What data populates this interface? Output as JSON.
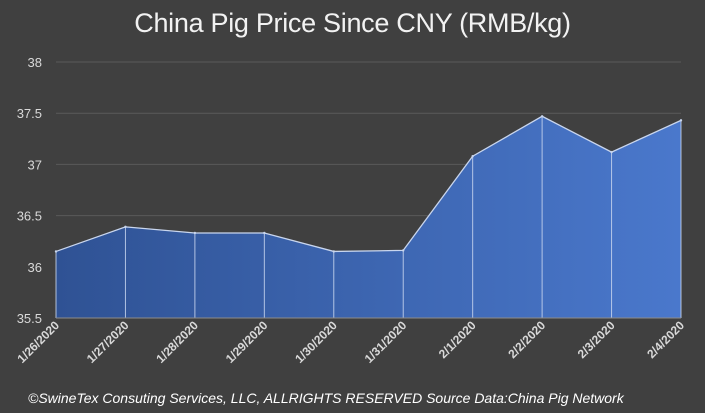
{
  "chart_data": {
    "type": "area",
    "title": "China Pig Price Since CNY (RMB/kg)",
    "xlabel": "",
    "ylabel": "",
    "categories": [
      "1/26/2020",
      "1/27/2020",
      "1/28/2020",
      "1/29/2020",
      "1/30/2020",
      "1/31/2020",
      "2/1/2020",
      "2/2/2020",
      "2/3/2020",
      "2/4/2020"
    ],
    "series": [
      {
        "values": [
          36.15,
          36.39,
          36.33,
          36.33,
          36.15,
          36.16,
          37.08,
          37.47,
          37.12,
          37.43
        ]
      }
    ],
    "ylim": [
      35.5,
      38
    ],
    "yticks": [
      35.5,
      36,
      36.5,
      37,
      37.5,
      38
    ],
    "ytick_labels": [
      "35.5",
      "36",
      "36.5",
      "37",
      "37.5",
      "38"
    ],
    "grid": true,
    "colors": {
      "background": "#404040",
      "fill_start": "#2f5294",
      "fill_end": "#4a78cc",
      "line": "#c9d6ee",
      "grid": "#5a5a5a",
      "text": "#d9d9d9"
    }
  },
  "footer": "©SwineTex Consuting Services, LLC, ALLRIGHTS RESERVED Source Data:China Pig Network"
}
